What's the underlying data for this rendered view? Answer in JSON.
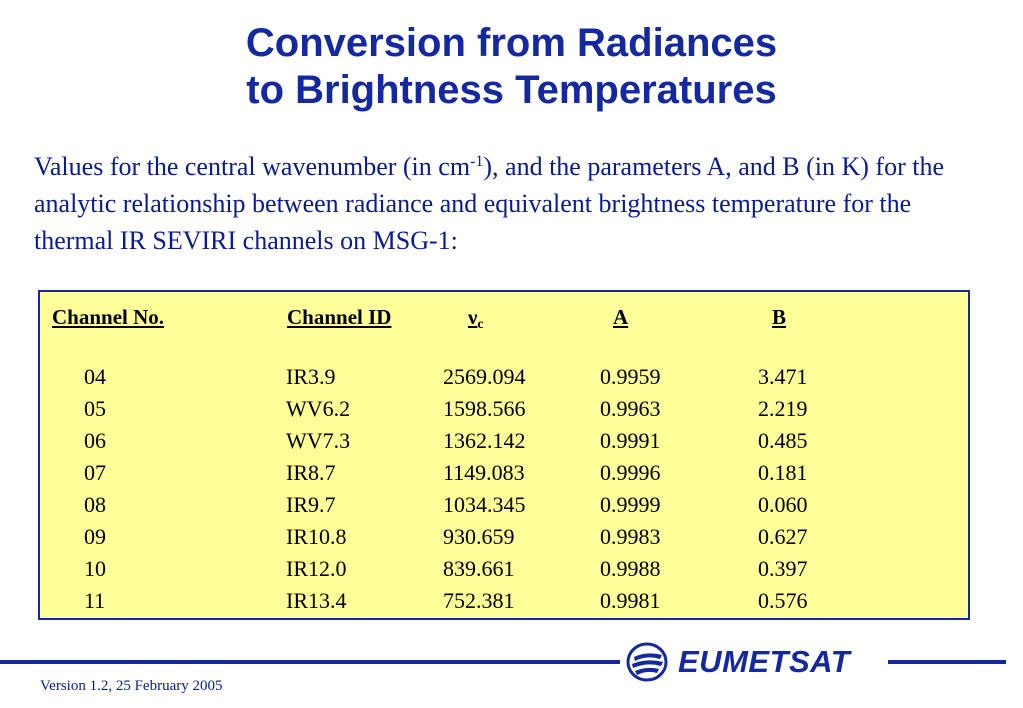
{
  "title": {
    "line1": "Conversion from Radiances",
    "line2": "to Brightness Temperatures"
  },
  "intro": {
    "part1": "Values for the central wavenumber (in cm",
    "sup": "-1",
    "part2": "), and the parameters A, and B (in K) for the analytic relationship between radiance and equivalent brightness temperature for the thermal IR SEVIRI channels on MSG-1:"
  },
  "table": {
    "headers": {
      "channel_no": "Channel No.",
      "channel_id": "Channel ID",
      "nu": "ν",
      "nu_sub": "c",
      "a": "A",
      "b": "B"
    },
    "rows": [
      {
        "no": "04",
        "id": "IR3.9",
        "nu": "2569.094",
        "a": "0.9959",
        "b": "3.471"
      },
      {
        "no": "05",
        "id": "WV6.2",
        "nu": "1598.566",
        "a": "0.9963",
        "b": "2.219"
      },
      {
        "no": "06",
        "id": "WV7.3",
        "nu": "1362.142",
        "a": "0.9991",
        "b": "0.485"
      },
      {
        "no": "07",
        "id": "IR8.7",
        "nu": "1149.083",
        "a": "0.9996",
        "b": "0.181"
      },
      {
        "no": "08",
        "id": "IR9.7",
        "nu": "1034.345",
        "a": "0.9999",
        "b": "0.060"
      },
      {
        "no": "09",
        "id": "IR10.8",
        "nu": "930.659",
        "a": "0.9983",
        "b": "0.627"
      },
      {
        "no": "10",
        "id": "IR12.0",
        "nu": "839.661",
        "a": "0.9988",
        "b": "0.397"
      },
      {
        "no": "11",
        "id": "IR13.4",
        "nu": "752.381",
        "a": "0.9981",
        "b": "0.576"
      }
    ]
  },
  "footer": {
    "logo_text": "EUMETSAT",
    "logo_icon": "eumetsat-globe-icon",
    "version": "Version 1.2, 25 February 2005"
  },
  "colors": {
    "title": "#1428a0",
    "table_background": "#ffff99",
    "rule": "#1428a0"
  }
}
